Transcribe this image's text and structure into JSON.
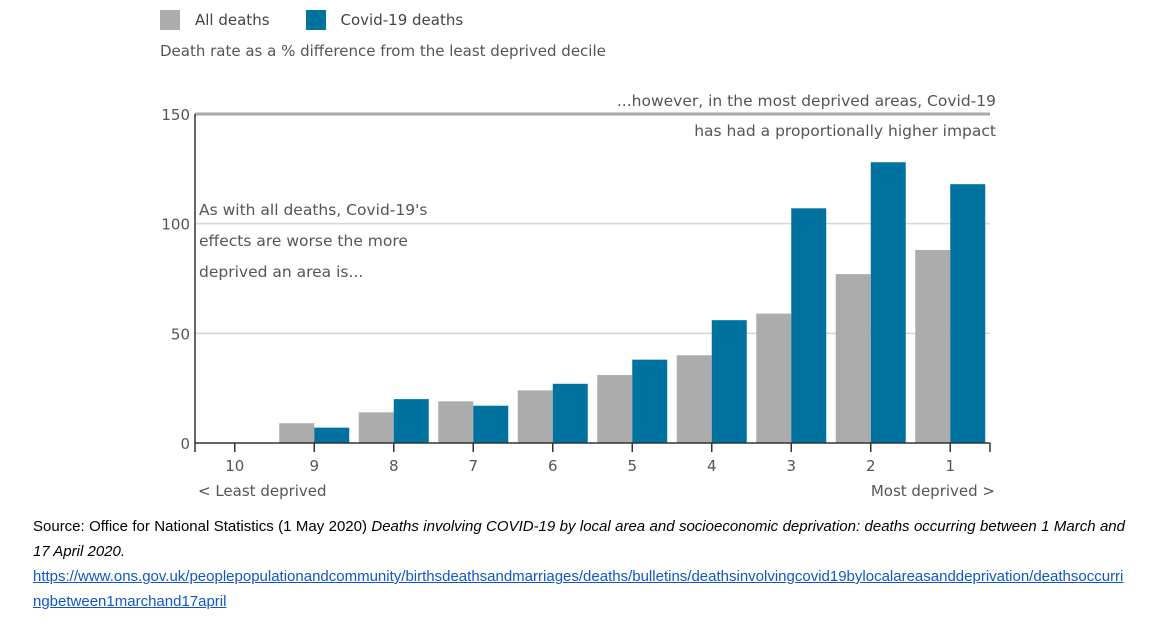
{
  "chart_data": {
    "type": "bar",
    "subtitle": "Death rate as a % difference from the least deprived decile",
    "categories": [
      "10",
      "9",
      "8",
      "7",
      "6",
      "5",
      "4",
      "3",
      "2",
      "1"
    ],
    "series": [
      {
        "name": "All deaths",
        "color": "#acacac",
        "values": [
          0,
          9,
          14,
          19,
          24,
          31,
          40,
          59,
          77,
          88
        ]
      },
      {
        "name": "Covid-19 deaths",
        "color": "#0072a0",
        "values": [
          0,
          7,
          20,
          17,
          27,
          38,
          56,
          107,
          128,
          118
        ]
      }
    ],
    "ylim": [
      0,
      150
    ],
    "yticks": [
      0,
      50,
      100,
      150
    ],
    "grid": true,
    "legend": "top-left",
    "x_left_label": "< Least deprived",
    "x_right_label": "Most deprived >",
    "annotations": {
      "left": [
        "As with all deaths, Covid-19's",
        "effects are worse the more",
        "deprived an area is..."
      ],
      "right": [
        "...however, in the most deprived areas, Covid-19",
        "has had a proportionally higher impact"
      ]
    }
  },
  "source": {
    "prefix": "Source: Office for National Statistics (1 May 2020) ",
    "title": "Deaths involving COVID-19 by local area and socioeconomic deprivation: deaths occurring between 1 March and 17 April 2020.",
    "url": "https://www.ons.gov.uk/peoplepopulationandcommunity/birthsdeathsandmarriages/deaths/bulletins/deathsinvolvingcovid19bylocalareasanddeprivation/deathsoccurringbetween1marchand17april"
  }
}
